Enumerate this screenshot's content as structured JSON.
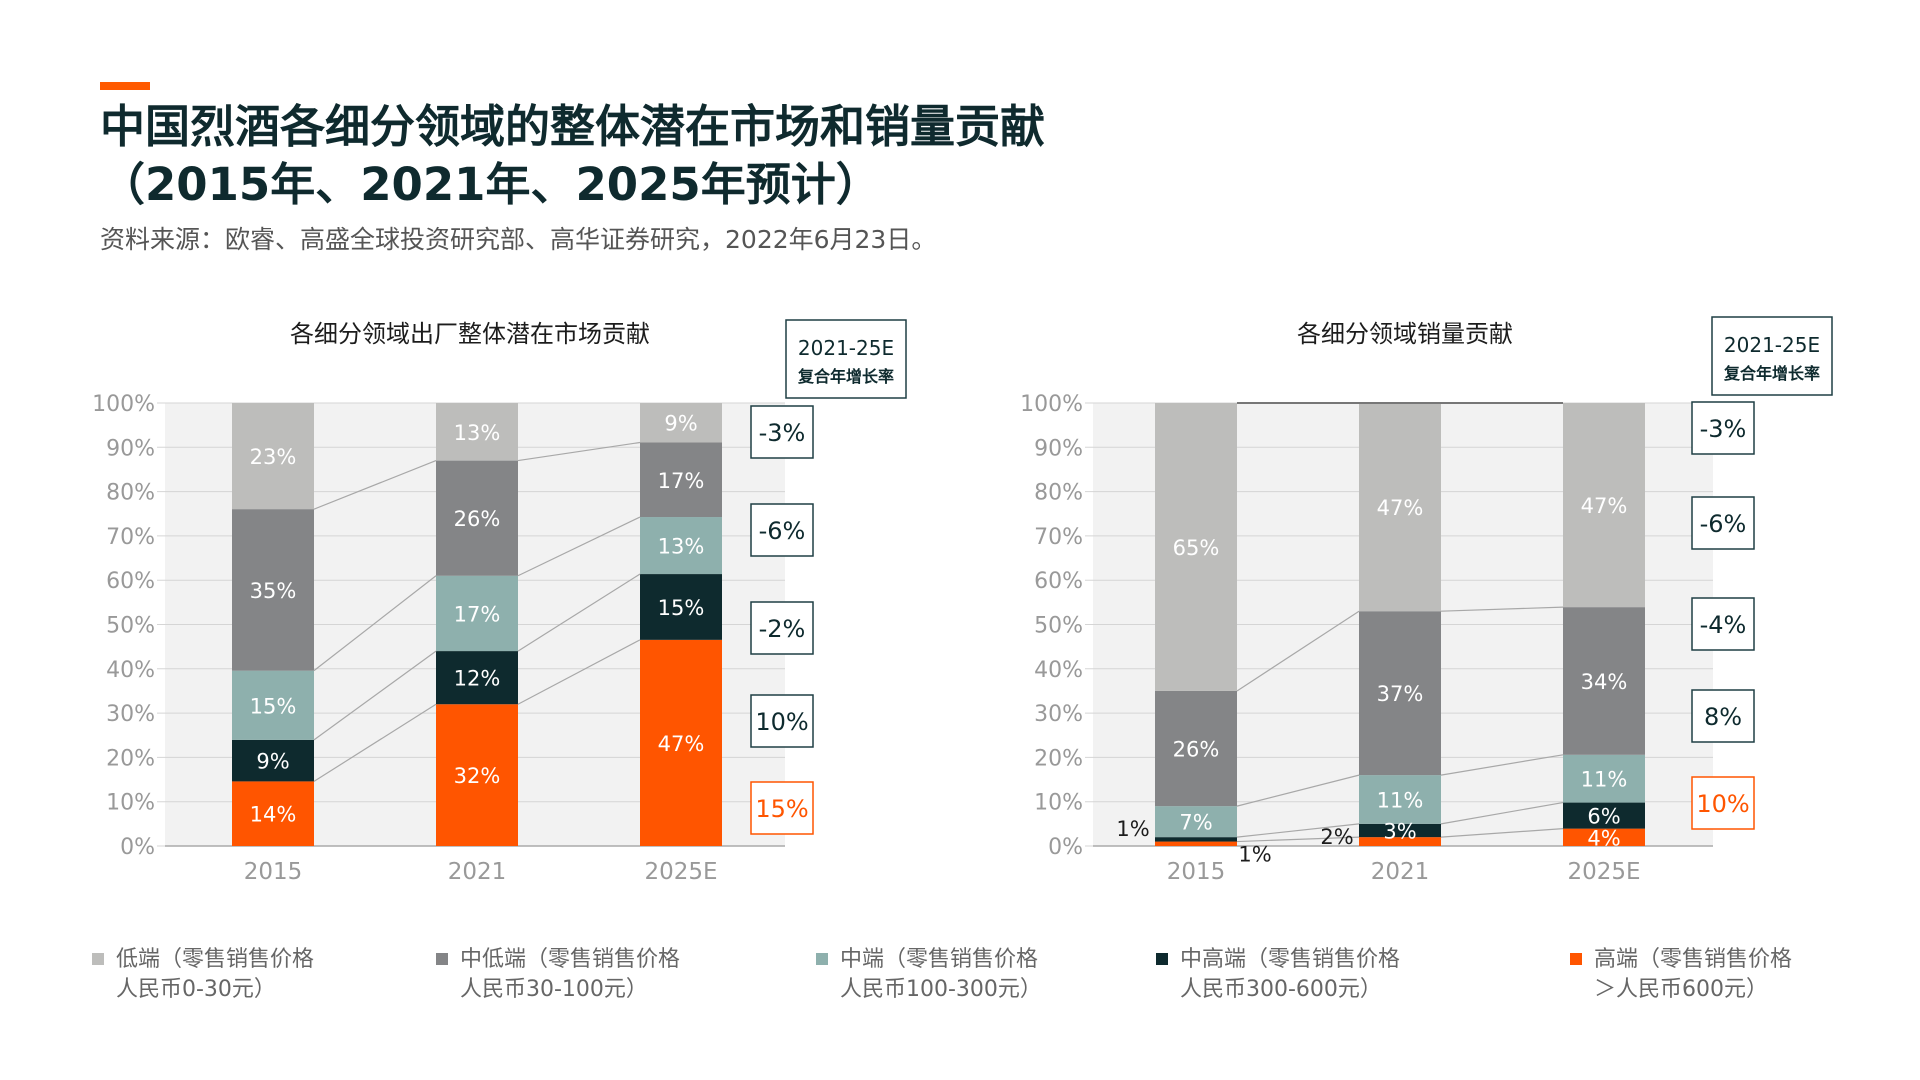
{
  "header": {
    "title_line1": "中国烈酒各细分领域的整体潜在市场和销量贡献",
    "title_line2": "（2015年、2021年、2025年预计）",
    "source": "资料来源：欧睿、高盛全球投资研究部、高华证券研究，2022年6月23日。"
  },
  "colors": {
    "accent": "#ff5a00",
    "low": "#bdbdbb",
    "mid_low": "#848587",
    "mid": "#8eb0ad",
    "mid_high": "#0e2a2e",
    "high": "#ff5500"
  },
  "legend": [
    {
      "line1": "低端（零售销售价格",
      "line2": "人民币0-30元）",
      "color": "#bdbdbb"
    },
    {
      "line1": "中低端（零售销售价格",
      "line2": "人民币30-100元）",
      "color": "#848587"
    },
    {
      "line1": "中端（零售销售价格",
      "line2": "人民币100-300元）",
      "color": "#8eb0ad"
    },
    {
      "line1": "中高端（零售销售价格",
      "line2": "人民币300-600元）",
      "color": "#0e2a2e"
    },
    {
      "line1": "高端（零售销售价格",
      "line2": "＞人民币600元）",
      "color": "#ff5500"
    }
  ],
  "chart_data": [
    {
      "type": "bar",
      "stacked": true,
      "title": "各细分领域出厂整体潜在市场贡献",
      "categories": [
        "2015",
        "2021",
        "2025E"
      ],
      "ylim": [
        0,
        100
      ],
      "yticks": [
        "0%",
        "10%",
        "20%",
        "30%",
        "40%",
        "50%",
        "60%",
        "70%",
        "80%",
        "90%",
        "100%"
      ],
      "grid": true,
      "series": [
        {
          "name": "高端",
          "values": [
            14,
            32,
            47
          ],
          "labels": [
            "14%",
            "32%",
            "47%"
          ]
        },
        {
          "name": "中高端",
          "values": [
            9,
            12,
            15
          ],
          "labels": [
            "9%",
            "12%",
            "15%"
          ]
        },
        {
          "name": "中端",
          "values": [
            15,
            17,
            13
          ],
          "labels": [
            "15%",
            "17%",
            "13%"
          ]
        },
        {
          "name": "中低端",
          "values": [
            35,
            26,
            17
          ],
          "labels": [
            "35%",
            "26%",
            "17%"
          ]
        },
        {
          "name": "低端",
          "values": [
            23,
            13,
            9
          ],
          "labels": [
            "23%",
            "13%",
            "9%"
          ]
        }
      ],
      "cagr_header": [
        "2021-25E",
        "复合年增长率"
      ],
      "cagr": [
        {
          "label": "-3%",
          "color": "#0e2a2e"
        },
        {
          "label": "-6%",
          "color": "#0e2a2e"
        },
        {
          "label": "-2%",
          "color": "#0e2a2e"
        },
        {
          "label": "10%",
          "color": "#0e2a2e"
        },
        {
          "label": "15%",
          "color": "#ff5500"
        }
      ]
    },
    {
      "type": "bar",
      "stacked": true,
      "title": "各细分领域销量贡献",
      "categories": [
        "2015",
        "2021",
        "2025E"
      ],
      "ylim": [
        0,
        100
      ],
      "yticks": [
        "0%",
        "10%",
        "20%",
        "30%",
        "40%",
        "50%",
        "60%",
        "70%",
        "80%",
        "90%",
        "100%"
      ],
      "grid": true,
      "series": [
        {
          "name": "高端",
          "values": [
            1,
            2,
            4
          ],
          "labels": [
            "1%",
            "2%",
            "4%"
          ]
        },
        {
          "name": "中高端",
          "values": [
            1,
            3,
            6
          ],
          "labels": [
            "1%",
            "3%",
            "6%"
          ]
        },
        {
          "name": "中端",
          "values": [
            7,
            11,
            11
          ],
          "labels": [
            "7%",
            "11%",
            "11%"
          ]
        },
        {
          "name": "中低端",
          "values": [
            26,
            37,
            34
          ],
          "labels": [
            "26%",
            "37%",
            "34%"
          ]
        },
        {
          "name": "低端",
          "values": [
            65,
            47,
            47
          ],
          "labels": [
            "65%",
            "47%",
            "47%"
          ]
        }
      ],
      "cagr_header": [
        "2021-25E",
        "复合年增长率"
      ],
      "cagr": [
        {
          "label": "-3%",
          "color": "#0e2a2e"
        },
        {
          "label": "-6%",
          "color": "#0e2a2e"
        },
        {
          "label": "-4%",
          "color": "#0e2a2e"
        },
        {
          "label": "8%",
          "color": "#0e2a2e"
        },
        {
          "label": "10%",
          "color": "#ff5500"
        }
      ]
    }
  ]
}
